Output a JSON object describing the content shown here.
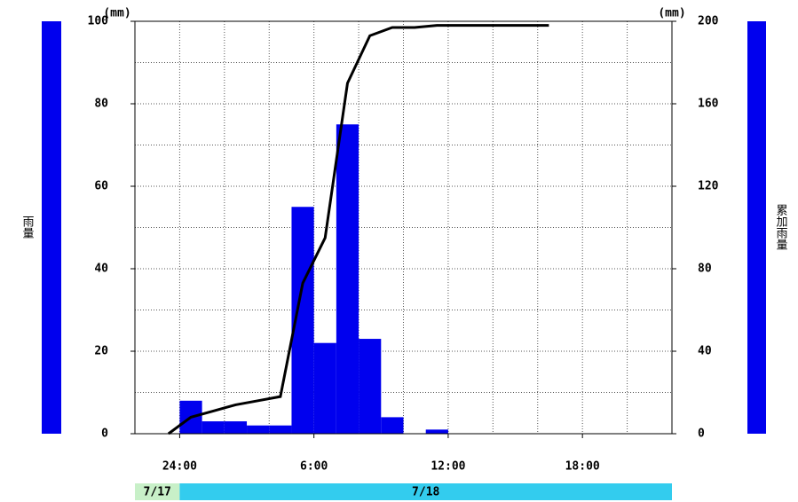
{
  "chart_data": {
    "type": "bar",
    "ylabel": "雨量",
    "y2label": "累加雨量",
    "yunit": "(mm)",
    "y2unit": "(mm)",
    "xlim": [
      0,
      24
    ],
    "xticks": [
      {
        "value": 2,
        "label": "24:00"
      },
      {
        "value": 8,
        "label": "6:00"
      },
      {
        "value": 14,
        "label": "12:00"
      },
      {
        "value": 20,
        "label": "18:00"
      }
    ],
    "xminor": [
      0,
      2,
      4,
      6,
      8,
      10,
      12,
      14,
      16,
      18,
      20,
      22,
      24
    ],
    "ylim": [
      0,
      100
    ],
    "yticks": [
      0,
      20,
      40,
      60,
      80,
      100
    ],
    "yminor": [
      0,
      10,
      20,
      30,
      40,
      50,
      60,
      70,
      80,
      90,
      100
    ],
    "y2lim": [
      0,
      200
    ],
    "y2ticks": [
      0,
      40,
      80,
      120,
      160,
      200
    ],
    "grid": true,
    "series": [
      {
        "name": "雨量",
        "kind": "bar",
        "color": "#0000ee",
        "x": [
          2,
          3,
          4,
          5,
          6,
          7,
          8,
          9,
          10,
          11,
          12,
          13
        ],
        "values": [
          8,
          3,
          3,
          2,
          2,
          55,
          22,
          75,
          23,
          4,
          0,
          1
        ]
      },
      {
        "name": "累加雨量",
        "kind": "line",
        "axis": "y2",
        "color": "#000000",
        "x": [
          1.5,
          2.5,
          3.5,
          4.5,
          5.5,
          6.5,
          7.5,
          8.5,
          9.5,
          10.5,
          11.5,
          12.5,
          13.5,
          14.5,
          15.5,
          16.5,
          17.5,
          18.5
        ],
        "values": [
          0,
          8,
          11,
          14,
          16,
          18,
          73,
          95,
          170,
          193,
          197,
          197,
          198,
          198,
          198,
          198,
          198,
          198
        ]
      }
    ],
    "dates": [
      {
        "label": "7/17",
        "from": 0,
        "to": 2,
        "color": "#c8f0c8"
      },
      {
        "label": "7/18",
        "from": 2,
        "to": 24,
        "color": "#33ccee"
      }
    ]
  }
}
